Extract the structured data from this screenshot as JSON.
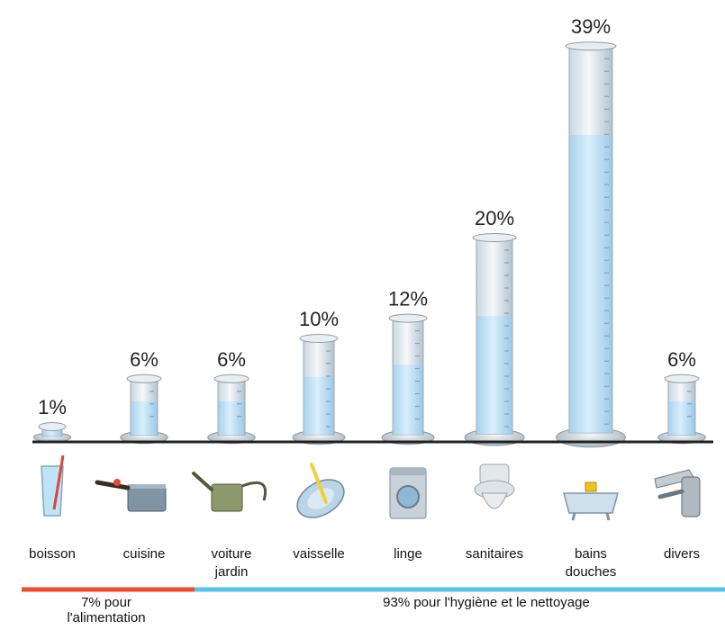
{
  "chart_data": {
    "type": "bar",
    "unit": "%",
    "categories": [
      [
        "boisson"
      ],
      [
        "cuisine"
      ],
      [
        "voiture",
        "jardin"
      ],
      [
        "vaisselle"
      ],
      [
        "linge"
      ],
      [
        "sanitaires"
      ],
      [
        "bains",
        "douches"
      ],
      [
        "divers"
      ]
    ],
    "values": [
      1,
      6,
      6,
      10,
      12,
      20,
      39,
      6
    ],
    "value_labels": [
      "1%",
      "6%",
      "6%",
      "10%",
      "12%",
      "20%",
      "39%",
      "6%"
    ],
    "icons": [
      "glass-icon",
      "saucepan-icon",
      "watering-can-icon",
      "plate-icon",
      "washing-machine-icon",
      "toilet-icon",
      "bathtub-icon",
      "faucet-icon"
    ],
    "groups": [
      {
        "label_lines": [
          "7% pour",
          "l'alimentation"
        ],
        "color": "#f04a2a",
        "span": [
          "boisson",
          "cuisine"
        ]
      },
      {
        "label_lines": [
          "93% pour l'hygiène et le nettoyage"
        ],
        "color": "#56c4ea",
        "span": [
          "voiture jardin",
          "divers"
        ]
      }
    ],
    "colors": {
      "water": "#bfe1f7",
      "glass": "#dfe8ef",
      "glass_edge": "#9aa9b4",
      "baseline": "#222222"
    }
  }
}
